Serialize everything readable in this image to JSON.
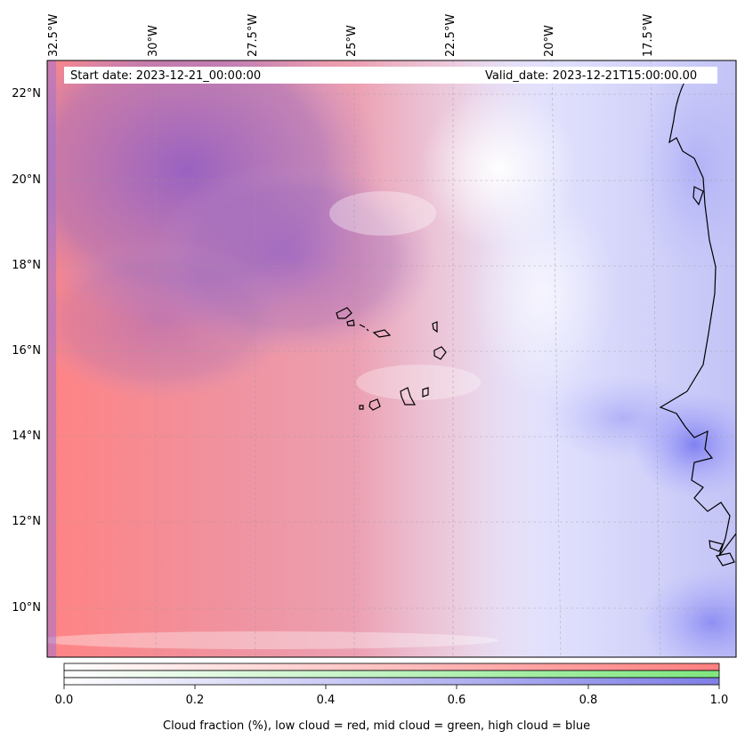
{
  "map": {
    "start_date": "Start date: 2023-12-21_00:00:00",
    "valid_date": "Valid_date: 2023-12-21T15:00:00.00",
    "lon_labels": [
      "32.5°W",
      "30°W",
      "27.5°W",
      "25°W",
      "22.5°W",
      "20°W",
      "17.5°W"
    ],
    "lat_labels": [
      "22°N",
      "20°N",
      "18°N",
      "16°N",
      "14°N",
      "12°N",
      "10°N"
    ],
    "gridlines": true,
    "colors": {
      "low_cloud": "#ff7f7f",
      "mid_cloud": "#7fe67f",
      "high_cloud": "#7f7fe6",
      "coastline": "#000000"
    }
  },
  "colorbar": {
    "ticks": [
      "0.0",
      "0.2",
      "0.4",
      "0.6",
      "0.8",
      "1.0"
    ],
    "caption": "Cloud fraction (%), low cloud = red, mid cloud = green, high cloud = blue"
  }
}
